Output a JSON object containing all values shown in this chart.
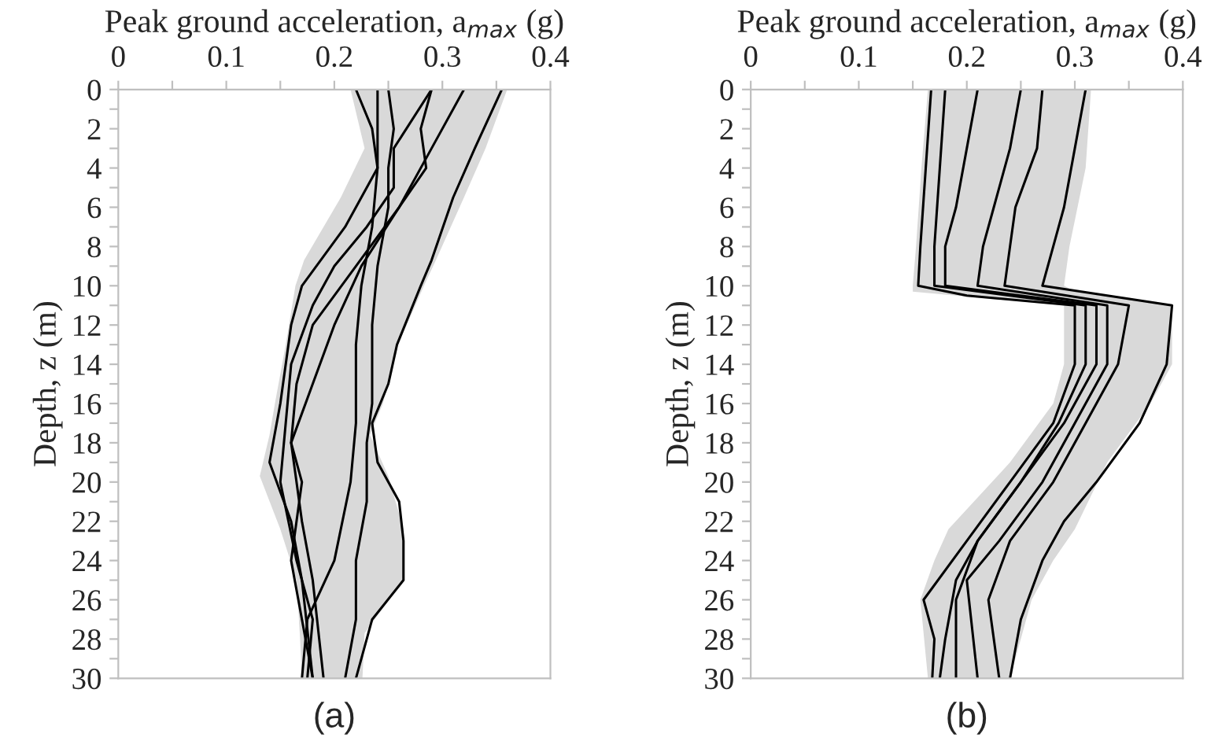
{
  "chart_data": [
    {
      "type": "line",
      "orientation": "horizontal",
      "xlabel": "Peak ground acceleration, a$_{max}$ (g)",
      "ylabel": "Depth, z (m)",
      "annotations": [
        "(a)"
      ],
      "grid": false,
      "marker": "none",
      "line_style": "solid",
      "xlim": [
        0,
        0.4
      ],
      "xticks": [
        0,
        {
          "value": 0.05,
          "label": null
        },
        0.1,
        {
          "value": 0.15,
          "label": null
        },
        0.2,
        {
          "value": 0.25,
          "label": null
        },
        0.3,
        {
          "value": 0.35,
          "label": null
        },
        0.4
      ],
      "ylim": [
        30,
        0
      ],
      "yticks": [
        0,
        {
          "value": 1,
          "label": null
        },
        2,
        {
          "value": 3,
          "label": null
        },
        4,
        {
          "value": 5,
          "label": null
        },
        6,
        {
          "value": 7,
          "label": null
        },
        8,
        {
          "value": 9,
          "label": null
        },
        10,
        {
          "value": 11,
          "label": null
        },
        12,
        {
          "value": 13,
          "label": null
        },
        14,
        {
          "value": 15,
          "label": null
        },
        16,
        {
          "value": 17,
          "label": null
        },
        18,
        {
          "value": 19,
          "label": null
        },
        20,
        {
          "value": 21,
          "label": null
        },
        22,
        {
          "value": 23,
          "label": null
        },
        24,
        {
          "value": 25,
          "label": null
        },
        26,
        {
          "value": 27,
          "label": null
        },
        28,
        {
          "value": 29,
          "label": null
        },
        30
      ],
      "series": [
        {
          "type": "area",
          "color": "#ffffff",
          "x": [
            0,
            3,
            5.5,
            8.7,
            10,
            13,
            16,
            17.6,
            19.7,
            22.4,
            25,
            27.7,
            30
          ],
          "values": [
            0.215,
            0.228,
            0.206,
            0.172,
            0.164,
            0.155,
            0.145,
            0.14,
            0.131,
            0.15,
            0.165,
            0.168,
            0.17
          ]
        },
        {
          "type": "area",
          "color": "#d9d9d9",
          "x": [
            0,
            3,
            5.5,
            8.7,
            10,
            13,
            16,
            17.6,
            19.7,
            22.4,
            25,
            27.7,
            30
          ],
          "values": [
            0.36,
            0.34,
            0.32,
            0.294,
            0.283,
            0.259,
            0.245,
            0.233,
            0.25,
            0.264,
            0.264,
            0.228,
            0.226
          ]
        },
        {
          "color": "#000000",
          "x": [
            0,
            3,
            5.5,
            8.7,
            10,
            13,
            15,
            17,
            19,
            21,
            23,
            25,
            27,
            30
          ],
          "values": [
            0.355,
            0.33,
            0.31,
            0.29,
            0.28,
            0.258,
            0.25,
            0.235,
            0.24,
            0.26,
            0.264,
            0.264,
            0.235,
            0.22
          ]
        },
        {
          "color": "#000000",
          "x": [
            0,
            3,
            6,
            9,
            12,
            15,
            18,
            22,
            25,
            30
          ],
          "values": [
            0.32,
            0.29,
            0.26,
            0.225,
            0.2,
            0.18,
            0.16,
            0.17,
            0.18,
            0.19
          ]
        },
        {
          "color": "#000000",
          "x": [
            0,
            2,
            4,
            6,
            9,
            12,
            15,
            18,
            20,
            24,
            27,
            30
          ],
          "values": [
            0.29,
            0.28,
            0.285,
            0.26,
            0.22,
            0.18,
            0.165,
            0.16,
            0.17,
            0.16,
            0.17,
            0.18
          ]
        },
        {
          "color": "#000000",
          "x": [
            0,
            3,
            5,
            7,
            9,
            11,
            14,
            17,
            20,
            24,
            27,
            30
          ],
          "values": [
            0.29,
            0.255,
            0.255,
            0.23,
            0.2,
            0.18,
            0.16,
            0.155,
            0.15,
            0.165,
            0.18,
            0.175
          ]
        },
        {
          "color": "#000000",
          "x": [
            0,
            2,
            4,
            6,
            9,
            12,
            16,
            18,
            21,
            24,
            27,
            30
          ],
          "values": [
            0.25,
            0.255,
            0.25,
            0.25,
            0.24,
            0.235,
            0.235,
            0.23,
            0.23,
            0.22,
            0.22,
            0.21
          ]
        },
        {
          "color": "#000000",
          "x": [
            0,
            4,
            7,
            10,
            13,
            17,
            20,
            24,
            27,
            30
          ],
          "values": [
            0.24,
            0.24,
            0.235,
            0.225,
            0.22,
            0.22,
            0.215,
            0.2,
            0.175,
            0.17
          ]
        },
        {
          "color": "#000000",
          "x": [
            0,
            2,
            4,
            7,
            10,
            12,
            16,
            19,
            22,
            25,
            30
          ],
          "values": [
            0.22,
            0.235,
            0.24,
            0.21,
            0.17,
            0.16,
            0.15,
            0.14,
            0.16,
            0.17,
            0.18
          ]
        }
      ]
    },
    {
      "type": "line",
      "orientation": "horizontal",
      "xlabel": "Peak ground acceleration, a$_{max}$ (g)",
      "ylabel": "Depth, z (m)",
      "annotations": [
        "(b)"
      ],
      "grid": false,
      "marker": "none",
      "line_style": "solid",
      "xlim": [
        0,
        0.4
      ],
      "xticks": [
        0,
        {
          "value": 0.05,
          "label": null
        },
        0.1,
        {
          "value": 0.15,
          "label": null
        },
        0.2,
        {
          "value": 0.25,
          "label": null
        },
        0.3,
        {
          "value": 0.35,
          "label": null
        },
        0.4
      ],
      "ylim": [
        30,
        0
      ],
      "yticks": [
        0,
        {
          "value": 1,
          "label": null
        },
        2,
        {
          "value": 3,
          "label": null
        },
        4,
        {
          "value": 5,
          "label": null
        },
        6,
        {
          "value": 7,
          "label": null
        },
        8,
        {
          "value": 9,
          "label": null
        },
        10,
        {
          "value": 11,
          "label": null
        },
        12,
        {
          "value": 13,
          "label": null
        },
        14,
        {
          "value": 15,
          "label": null
        },
        16,
        {
          "value": 17,
          "label": null
        },
        18,
        {
          "value": 19,
          "label": null
        },
        20,
        {
          "value": 21,
          "label": null
        },
        22,
        {
          "value": 23,
          "label": null
        },
        24,
        {
          "value": 25,
          "label": null
        },
        26,
        {
          "value": 27,
          "label": null
        },
        28,
        {
          "value": 29,
          "label": null
        },
        30
      ],
      "series": [
        {
          "type": "area",
          "color": "#ffffff",
          "x": [
            0,
            4,
            8,
            10,
            10.3,
            11,
            14,
            16,
            19,
            22.4,
            24,
            26,
            30
          ],
          "values": [
            0.164,
            0.158,
            0.153,
            0.15,
            0.15,
            0.29,
            0.29,
            0.28,
            0.24,
            0.183,
            0.17,
            0.157,
            0.164
          ]
        },
        {
          "type": "area",
          "color": "#d9d9d9",
          "x": [
            0,
            4,
            8,
            10,
            10.3,
            11,
            14,
            16,
            19,
            22.4,
            24,
            26,
            30
          ],
          "values": [
            0.315,
            0.31,
            0.295,
            0.29,
            0.3,
            0.39,
            0.39,
            0.37,
            0.33,
            0.3,
            0.28,
            0.26,
            0.24
          ]
        },
        {
          "color": "#000000",
          "x": [
            0,
            4,
            8,
            10,
            10.5,
            11,
            14,
            17,
            20,
            23,
            26,
            28,
            30
          ],
          "values": [
            0.167,
            0.162,
            0.157,
            0.155,
            0.2,
            0.3,
            0.3,
            0.28,
            0.24,
            0.2,
            0.16,
            0.17,
            0.168
          ]
        },
        {
          "color": "#000000",
          "x": [
            0,
            4,
            8,
            10,
            11,
            14,
            17,
            20,
            23,
            25,
            28,
            30
          ],
          "values": [
            0.18,
            0.175,
            0.17,
            0.17,
            0.31,
            0.31,
            0.285,
            0.25,
            0.21,
            0.19,
            0.18,
            0.175
          ]
        },
        {
          "color": "#000000",
          "x": [
            0,
            3,
            6,
            8,
            10,
            11,
            14,
            17,
            20,
            23,
            26,
            30
          ],
          "values": [
            0.21,
            0.2,
            0.19,
            0.18,
            0.18,
            0.32,
            0.32,
            0.29,
            0.25,
            0.21,
            0.19,
            0.19
          ]
        },
        {
          "color": "#000000",
          "x": [
            0,
            3,
            6,
            8,
            10,
            11,
            14,
            17,
            20,
            23,
            25,
            30
          ],
          "values": [
            0.25,
            0.24,
            0.225,
            0.215,
            0.21,
            0.33,
            0.33,
            0.3,
            0.27,
            0.23,
            0.2,
            0.21
          ]
        },
        {
          "color": "#000000",
          "x": [
            0,
            3,
            6,
            8,
            10,
            11,
            14,
            17,
            20,
            23,
            26,
            30
          ],
          "values": [
            0.27,
            0.265,
            0.245,
            0.24,
            0.235,
            0.35,
            0.34,
            0.31,
            0.28,
            0.24,
            0.22,
            0.23
          ]
        },
        {
          "color": "#000000",
          "x": [
            0,
            3,
            6,
            8,
            10,
            11,
            14,
            17,
            20,
            22,
            24,
            27,
            30
          ],
          "values": [
            0.31,
            0.3,
            0.29,
            0.28,
            0.27,
            0.39,
            0.385,
            0.36,
            0.32,
            0.29,
            0.27,
            0.25,
            0.24
          ]
        }
      ]
    }
  ]
}
